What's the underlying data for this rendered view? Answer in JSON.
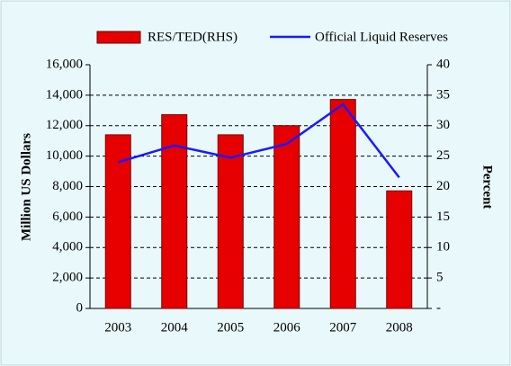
{
  "chart_data": {
    "type": "bar",
    "categories": [
      "2003",
      "2004",
      "2005",
      "2006",
      "2007",
      "2008"
    ],
    "series": [
      {
        "name": "RES/TED(RHS)",
        "type": "bar",
        "axis": "y2",
        "color": "#e60000",
        "values": [
          28.5,
          31.8,
          28.5,
          30,
          34.3,
          19.3
        ]
      },
      {
        "name": "Official Liquid Reserves",
        "type": "line",
        "axis": "y",
        "color": "#1a1aff",
        "values": [
          9600,
          10700,
          9900,
          10800,
          13400,
          8600
        ]
      }
    ],
    "ylabel": "Million US Dollars",
    "y2label": "Percent",
    "ylim": [
      0,
      16000
    ],
    "yticks": [
      0,
      {
        "value": 2000,
        "label": "2,000"
      },
      {
        "value": 4000,
        "label": "4,000"
      },
      {
        "value": 6000,
        "label": "6,000"
      },
      {
        "value": 8000,
        "label": "8,000"
      },
      {
        "value": 10000,
        "label": "10,000"
      },
      {
        "value": 12000,
        "label": "12,000"
      },
      {
        "value": 14000,
        "label": "14,000"
      },
      {
        "value": 16000,
        "label": "16,000"
      }
    ],
    "y2lim": [
      0,
      40
    ],
    "y2ticks": [
      {
        "value": 0,
        "label": "-"
      },
      5,
      10,
      15,
      20,
      25,
      30,
      35,
      40
    ],
    "grid": true,
    "legend": "top"
  }
}
